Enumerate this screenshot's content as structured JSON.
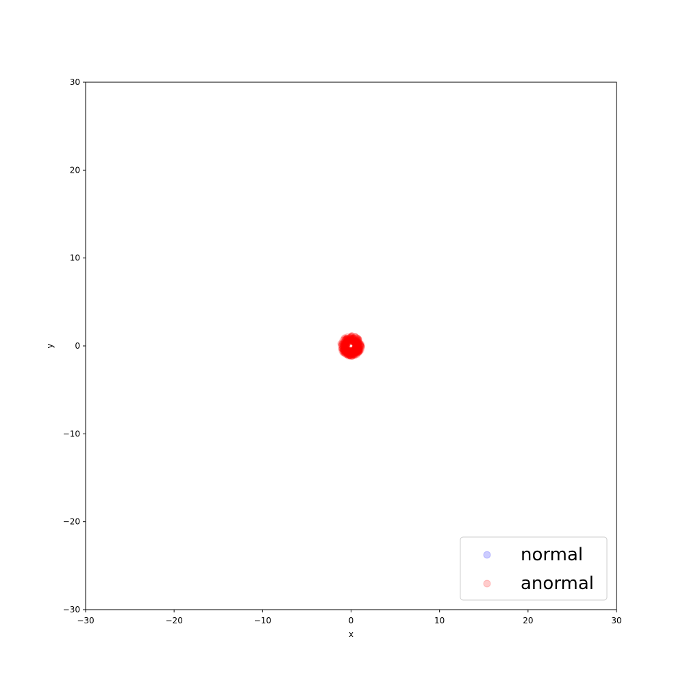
{
  "chart_data": {
    "type": "scatter",
    "title": "",
    "xlabel": "x",
    "ylabel": "y",
    "xlim": [
      -30,
      30
    ],
    "ylim": [
      -30,
      30
    ],
    "xticks": [
      -30,
      -20,
      -10,
      0,
      10,
      20,
      30
    ],
    "yticks": [
      -30,
      -20,
      -10,
      0,
      10,
      20,
      30
    ],
    "xtick_labels": [
      "−30",
      "−20",
      "−10",
      "0",
      "10",
      "20",
      "30"
    ],
    "ytick_labels": [
      "−30",
      "−20",
      "−10",
      "0",
      "10",
      "20",
      "30"
    ],
    "grid": false,
    "legend_position": "lower-right",
    "series": [
      {
        "name": "normal",
        "color": "#0000ff",
        "alpha": 0.2,
        "points": []
      },
      {
        "name": "anormal",
        "color": "#ff0000",
        "alpha": 0.2,
        "ring": {
          "center": [
            0,
            0
          ],
          "inner_radius": 0.45,
          "outer_radius": 1.25,
          "count": 420
        }
      }
    ]
  }
}
